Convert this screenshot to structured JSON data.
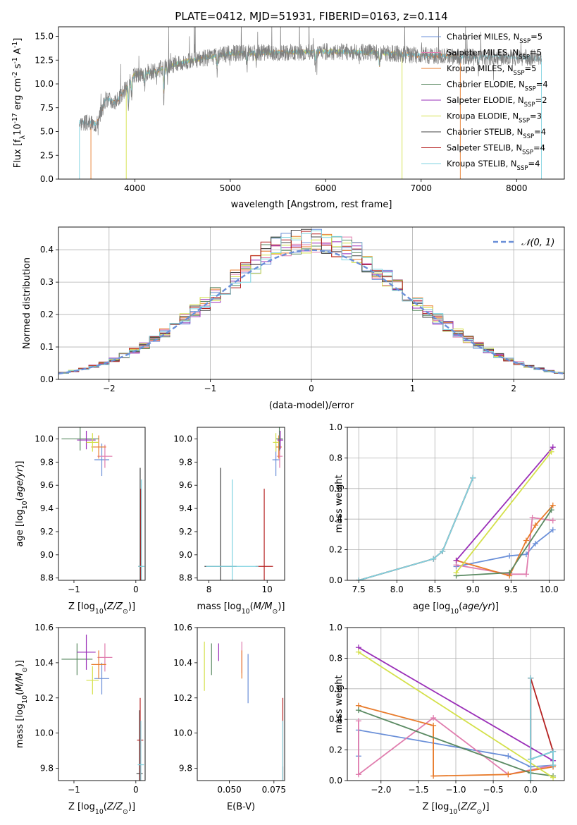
{
  "colors": {
    "chabrier_miles": "#6a8fd8",
    "salpeter_miles": "#e07dae",
    "kroupa_miles": "#e87b2b",
    "chabrier_elodie": "#5a8a62",
    "salpeter_elodie": "#9a2fb8",
    "kroupa_elodie": "#d4e04a",
    "chabrier_stelib": "#444444",
    "salpeter_stelib": "#b52222",
    "kroupa_stelib": "#7fd3e0",
    "grid": "#b0b0b0"
  },
  "chart_data": [
    {
      "id": "spectrum",
      "type": "line",
      "title": "PLATE=0412, MJD=51931, FIBERID=0163, z=0.114",
      "xlabel": "wavelength [Angstrom, rest frame]",
      "ylabel": "Flux [f$_\\lambda$10$^{-17}$ erg cm$^{-2}$ s$^{-1}$ A$^{-1}$]",
      "xlim": [
        3200,
        8500
      ],
      "ylim": [
        0,
        16
      ],
      "xticks": [
        "4000",
        "5000",
        "6000",
        "7000",
        "8000"
      ],
      "yticks": [
        "0.0",
        "2.5",
        "5.0",
        "7.5",
        "10.0",
        "12.5",
        "15.0"
      ],
      "legend_position": "top-right",
      "legend": [
        {
          "label": "Chabrier MILES, N",
          "sub": "SSP",
          "suffix": "=5",
          "color_key": "chabrier_miles"
        },
        {
          "label": "Salpeter MILES, N",
          "sub": "SSP",
          "suffix": "=5",
          "color_key": "salpeter_miles"
        },
        {
          "label": "Kroupa MILES, N",
          "sub": "SSP",
          "suffix": "=5",
          "color_key": "kroupa_miles"
        },
        {
          "label": "Chabrier ELODIE, N",
          "sub": "SSP",
          "suffix": "=4",
          "color_key": "chabrier_elodie"
        },
        {
          "label": "Salpeter ELODIE, N",
          "sub": "SSP",
          "suffix": "=2",
          "color_key": "salpeter_elodie"
        },
        {
          "label": "Kroupa ELODIE, N",
          "sub": "SSP",
          "suffix": "=3",
          "color_key": "kroupa_elodie"
        },
        {
          "label": "Chabrier STELIB, N",
          "sub": "SSP",
          "suffix": "=4",
          "color_key": "chabrier_stelib"
        },
        {
          "label": "Salpeter STELIB, N",
          "sub": "SSP",
          "suffix": "=4",
          "color_key": "salpeter_stelib"
        },
        {
          "label": "Kroupa STELIB, N",
          "sub": "SSP",
          "suffix": "=4",
          "color_key": "kroupa_stelib"
        }
      ],
      "data_range": [
        3420,
        8260
      ],
      "continuum": [
        [
          3420,
          6.0
        ],
        [
          3600,
          5.8
        ],
        [
          3700,
          8.5
        ],
        [
          3800,
          8.0
        ],
        [
          3900,
          9.5
        ],
        [
          4000,
          11.0
        ],
        [
          4200,
          11.3
        ],
        [
          4400,
          12.0
        ],
        [
          4600,
          12.5
        ],
        [
          5000,
          13.2
        ],
        [
          5500,
          13.3
        ],
        [
          6000,
          13.4
        ],
        [
          6500,
          13.3
        ],
        [
          7000,
          13.0
        ],
        [
          7500,
          12.8
        ],
        [
          8000,
          12.8
        ],
        [
          8260,
          12.7
        ]
      ],
      "absorption_lines": [
        [
          3934,
          3.0
        ],
        [
          3968,
          2.5
        ],
        [
          4102,
          1.5
        ],
        [
          4227,
          1.0
        ],
        [
          4304,
          3.5
        ],
        [
          4340,
          1.2
        ],
        [
          4861,
          1.5
        ],
        [
          5175,
          1.5
        ],
        [
          5270,
          1.0
        ],
        [
          5890,
          1.5
        ],
        [
          6563,
          2.0
        ],
        [
          7600,
          1.2
        ]
      ],
      "model_coverage": [
        {
          "color_key": "kroupa_miles",
          "range": [
            3540,
            7410
          ]
        },
        {
          "color_key": "kroupa_elodie",
          "range": [
            3910,
            6800
          ]
        },
        {
          "color_key": "kroupa_stelib",
          "range": [
            3420,
            8260
          ]
        }
      ]
    },
    {
      "id": "residuals",
      "type": "line",
      "xlabel": "(data-model)/error",
      "ylabel": "Normed distribution",
      "xlim": [
        -2.5,
        2.5
      ],
      "ylim": [
        0,
        0.47
      ],
      "xticks": [
        "−2",
        "−1",
        "0",
        "1",
        "2"
      ],
      "yticks": [
        "0.0",
        "0.1",
        "0.2",
        "0.3",
        "0.4"
      ],
      "grid": true,
      "legend_position": "top-right",
      "legend": [
        {
          "label": "𝒩(0, 1)",
          "color_key": "chabrier_miles",
          "style": "dashed"
        }
      ],
      "bin_width": 0.1,
      "series": [
        {
          "color_key": "chabrier_miles",
          "seed": 1
        },
        {
          "color_key": "salpeter_miles",
          "seed": 2
        },
        {
          "color_key": "kroupa_miles",
          "seed": 3
        },
        {
          "color_key": "chabrier_elodie",
          "seed": 4
        },
        {
          "color_key": "salpeter_elodie",
          "seed": 5
        },
        {
          "color_key": "kroupa_elodie",
          "seed": 6
        },
        {
          "color_key": "chabrier_stelib",
          "seed": 7
        },
        {
          "color_key": "salpeter_stelib",
          "seed": 8
        },
        {
          "color_key": "kroupa_stelib",
          "seed": 9
        }
      ]
    },
    {
      "id": "age_vs_Z",
      "type": "scatter",
      "xlabel": "Z [log$_{10}$($Z/Z_\\odot$)]",
      "ylabel": "age  [log$_{10}$($age/yr$)]",
      "xlim": [
        -1.25,
        0.15
      ],
      "ylim": [
        8.78,
        10.1
      ],
      "xticks": [
        "−1",
        "0"
      ],
      "yticks": [
        "8.8",
        "9.0",
        "9.2",
        "9.4",
        "9.6",
        "9.8",
        "10.0"
      ],
      "points": [
        {
          "x": -0.55,
          "y": 9.82,
          "xerr": 0.12,
          "yerr": 0.14,
          "color_key": "chabrier_miles"
        },
        {
          "x": -0.5,
          "y": 9.85,
          "xerr": 0.12,
          "yerr": 0.1,
          "color_key": "salpeter_miles"
        },
        {
          "x": -0.6,
          "y": 9.93,
          "xerr": 0.12,
          "yerr": 0.1,
          "color_key": "kroupa_miles"
        },
        {
          "x": -0.9,
          "y": 10.0,
          "xerr": 0.3,
          "yerr": 0.1,
          "color_key": "chabrier_elodie"
        },
        {
          "x": -0.8,
          "y": 9.99,
          "xerr": 0.15,
          "yerr": 0.08,
          "color_key": "salpeter_elodie"
        },
        {
          "x": -0.7,
          "y": 9.97,
          "xerr": 0.1,
          "yerr": 0.08,
          "color_key": "kroupa_elodie"
        },
        {
          "x": 0.07,
          "y": 8.9,
          "xerr": 0.03,
          "yerr": 0.85,
          "color_key": "chabrier_stelib"
        },
        {
          "x": 0.08,
          "y": 8.9,
          "xerr": 0.03,
          "yerr": 0.67,
          "color_key": "salpeter_stelib"
        },
        {
          "x": 0.09,
          "y": 8.9,
          "xerr": 0.05,
          "yerr": 0.75,
          "color_key": "kroupa_stelib"
        }
      ]
    },
    {
      "id": "age_vs_mass",
      "type": "scatter",
      "xlabel": "mass [log$_{10}$($M/M_\\odot$)]",
      "ylabel": "",
      "xlim": [
        7.6,
        10.6
      ],
      "ylim": [
        8.78,
        10.1
      ],
      "xticks": [
        "8",
        "10"
      ],
      "yticks": [
        "8.8",
        "9.0",
        "9.2",
        "9.4",
        "9.6",
        "9.8",
        "10.0"
      ],
      "points": [
        {
          "x": 10.3,
          "y": 9.82,
          "xerr": 0.12,
          "yerr": 0.14,
          "color_key": "chabrier_miles"
        },
        {
          "x": 10.43,
          "y": 9.85,
          "xerr": 0.1,
          "yerr": 0.1,
          "color_key": "salpeter_miles"
        },
        {
          "x": 10.4,
          "y": 9.93,
          "xerr": 0.1,
          "yerr": 0.1,
          "color_key": "kroupa_miles"
        },
        {
          "x": 10.42,
          "y": 10.0,
          "xerr": 0.12,
          "yerr": 0.1,
          "color_key": "chabrier_elodie"
        },
        {
          "x": 10.45,
          "y": 9.99,
          "xerr": 0.1,
          "yerr": 0.08,
          "color_key": "salpeter_elodie"
        },
        {
          "x": 10.3,
          "y": 9.97,
          "xerr": 0.1,
          "yerr": 0.08,
          "color_key": "kroupa_elodie"
        },
        {
          "x": 8.4,
          "y": 8.9,
          "xerr": 0.55,
          "yerr": 0.85,
          "color_key": "chabrier_stelib"
        },
        {
          "x": 9.9,
          "y": 8.9,
          "xerr": 0.3,
          "yerr": 0.67,
          "color_key": "salpeter_stelib"
        },
        {
          "x": 8.8,
          "y": 8.9,
          "xerr": 0.9,
          "yerr": 0.75,
          "color_key": "kroupa_stelib"
        }
      ]
    },
    {
      "id": "weight_vs_age",
      "type": "line",
      "xlabel": "age  [log$_{10}$($age/yr$)]",
      "ylabel": "mass weight",
      "xlim": [
        7.35,
        10.2
      ],
      "ylim": [
        0,
        1.0
      ],
      "xticks": [
        "7.5",
        "8.0",
        "8.5",
        "9.0",
        "9.5",
        "10.0"
      ],
      "yticks": [
        "0.0",
        "0.2",
        "0.4",
        "0.6",
        "0.8",
        "1.0"
      ],
      "grid": true,
      "series": [
        {
          "color_key": "chabrier_miles",
          "x": [
            8.78,
            9.48,
            9.7,
            9.82,
            10.05
          ],
          "y": [
            0.09,
            0.16,
            0.17,
            0.24,
            0.33
          ]
        },
        {
          "color_key": "salpeter_miles",
          "x": [
            8.78,
            9.48,
            9.7,
            9.78,
            10.05
          ],
          "y": [
            0.1,
            0.04,
            0.04,
            0.41,
            0.39
          ]
        },
        {
          "color_key": "kroupa_miles",
          "x": [
            8.78,
            9.48,
            9.7,
            9.82,
            10.05
          ],
          "y": [
            0.13,
            0.03,
            0.26,
            0.36,
            0.49
          ]
        },
        {
          "color_key": "chabrier_elodie",
          "x": [
            8.78,
            9.48,
            10.03
          ],
          "y": [
            0.03,
            0.05,
            0.46
          ]
        },
        {
          "color_key": "salpeter_elodie",
          "x": [
            8.78,
            10.05
          ],
          "y": [
            0.13,
            0.87
          ]
        },
        {
          "color_key": "kroupa_elodie",
          "x": [
            8.78,
            10.03
          ],
          "y": [
            0.05,
            0.84
          ]
        },
        {
          "color_key": "chabrier_stelib",
          "x": [
            7.5,
            8.48,
            8.6,
            9.0
          ],
          "y": [
            0.0,
            0.14,
            0.19,
            0.67
          ]
        },
        {
          "color_key": "salpeter_stelib",
          "x": [
            7.5,
            8.48,
            8.6,
            9.0
          ],
          "y": [
            0.0,
            0.14,
            0.19,
            0.67
          ]
        },
        {
          "color_key": "kroupa_stelib",
          "x": [
            7.5,
            8.48,
            8.6,
            9.0
          ],
          "y": [
            0.0,
            0.14,
            0.19,
            0.67
          ]
        }
      ]
    },
    {
      "id": "mass_vs_Z",
      "type": "scatter",
      "xlabel": "Z [log$_{10}$($Z/Z_\\odot$)]",
      "ylabel": "mass [log$_{10}$($M/M_\\odot$)]",
      "xlim": [
        -1.25,
        0.15
      ],
      "ylim": [
        9.73,
        10.6
      ],
      "xticks": [
        "−1",
        "0"
      ],
      "yticks": [
        "9.8",
        "10.0",
        "10.2",
        "10.4",
        "10.6"
      ],
      "points": [
        {
          "x": -0.55,
          "y": 10.31,
          "xerr": 0.12,
          "yerr": 0.09,
          "color_key": "chabrier_miles"
        },
        {
          "x": -0.5,
          "y": 10.43,
          "xerr": 0.12,
          "yerr": 0.08,
          "color_key": "salpeter_miles"
        },
        {
          "x": -0.6,
          "y": 10.39,
          "xerr": 0.12,
          "yerr": 0.08,
          "color_key": "kroupa_miles"
        },
        {
          "x": -0.95,
          "y": 10.42,
          "xerr": 0.25,
          "yerr": 0.09,
          "color_key": "chabrier_elodie"
        },
        {
          "x": -0.8,
          "y": 10.46,
          "xerr": 0.15,
          "yerr": 0.1,
          "color_key": "salpeter_elodie"
        },
        {
          "x": -0.7,
          "y": 10.3,
          "xerr": 0.1,
          "yerr": 0.08,
          "color_key": "kroupa_elodie"
        },
        {
          "x": 0.06,
          "y": 9.77,
          "xerr": 0.05,
          "yerr": 0.36,
          "color_key": "chabrier_stelib"
        },
        {
          "x": 0.07,
          "y": 9.96,
          "xerr": 0.05,
          "yerr": 0.24,
          "color_key": "salpeter_stelib"
        },
        {
          "x": 0.08,
          "y": 9.82,
          "xerr": 0.05,
          "yerr": 0.25,
          "color_key": "kroupa_stelib"
        }
      ]
    },
    {
      "id": "mass_vs_ebv",
      "type": "scatter",
      "xlabel": "E(B-V)",
      "ylabel": "",
      "xlim": [
        0.032,
        0.081
      ],
      "ylim": [
        9.73,
        10.6
      ],
      "xticks": [
        "0.050",
        "0.075"
      ],
      "yticks": [
        "9.8",
        "10.0",
        "10.2",
        "10.4",
        "10.6"
      ],
      "points": [
        {
          "x": 0.0605,
          "y": 10.31,
          "xerr": 0,
          "yerr": 0.14,
          "color_key": "chabrier_miles"
        },
        {
          "x": 0.057,
          "y": 10.43,
          "xerr": 0,
          "yerr": 0.09,
          "color_key": "salpeter_miles"
        },
        {
          "x": 0.057,
          "y": 10.39,
          "xerr": 0,
          "yerr": 0.08,
          "color_key": "kroupa_miles"
        },
        {
          "x": 0.04,
          "y": 10.42,
          "xerr": 0,
          "yerr": 0.09,
          "color_key": "chabrier_elodie"
        },
        {
          "x": 0.044,
          "y": 10.46,
          "xerr": 0,
          "yerr": 0.05,
          "color_key": "salpeter_elodie"
        },
        {
          "x": 0.036,
          "y": 10.38,
          "xerr": 0,
          "yerr": 0.14,
          "color_key": "kroupa_elodie"
        },
        {
          "x": 0.08,
          "y": 9.77,
          "xerr": 0,
          "yerr": 0.04,
          "color_key": "chabrier_stelib"
        },
        {
          "x": 0.08,
          "y": 9.96,
          "xerr": 0,
          "yerr": 0.24,
          "color_key": "salpeter_stelib"
        },
        {
          "x": 0.08,
          "y": 9.82,
          "xerr": 0,
          "yerr": 0.25,
          "color_key": "kroupa_stelib"
        }
      ]
    },
    {
      "id": "weight_vs_Z",
      "type": "line",
      "xlabel": "Z [log$_{10}$($Z/Z_\\odot$)]",
      "ylabel": "mass weight",
      "xlim": [
        -2.45,
        0.45
      ],
      "ylim": [
        0,
        1.0
      ],
      "xticks": [
        "−2.0",
        "−1.5",
        "−1.0",
        "−0.5",
        "0.0"
      ],
      "yticks": [
        "0.0",
        "0.2",
        "0.4",
        "0.6",
        "0.8",
        "1.0"
      ],
      "grid": true,
      "series": [
        {
          "color_key": "chabrier_miles",
          "x": [
            -2.3,
            -2.3,
            -0.3,
            0.0,
            0.3
          ],
          "y": [
            0.16,
            0.33,
            0.16,
            0.09,
            0.1
          ]
        },
        {
          "color_key": "salpeter_miles",
          "x": [
            -2.3,
            -2.3,
            -1.3,
            -0.3,
            0.3
          ],
          "y": [
            0.39,
            0.04,
            0.41,
            0.04,
            0.1
          ]
        },
        {
          "color_key": "kroupa_miles",
          "x": [
            -2.3,
            -1.3,
            -1.3,
            -0.3,
            0.3
          ],
          "y": [
            0.49,
            0.36,
            0.03,
            0.04,
            0.09
          ]
        },
        {
          "color_key": "chabrier_elodie",
          "x": [
            -2.3,
            0.0,
            0.3
          ],
          "y": [
            0.46,
            0.05,
            0.03
          ]
        },
        {
          "color_key": "salpeter_elodie",
          "x": [
            -2.3,
            0.3
          ],
          "y": [
            0.87,
            0.13
          ]
        },
        {
          "color_key": "kroupa_elodie",
          "x": [
            -2.3,
            0.3
          ],
          "y": [
            0.84,
            0.02
          ]
        },
        {
          "color_key": "chabrier_stelib",
          "x": [
            0.0,
            0.0,
            0.0,
            0.3,
            0.3
          ],
          "y": [
            0.0,
            0.67,
            0.14,
            0.19,
            0.1
          ]
        },
        {
          "color_key": "salpeter_stelib",
          "x": [
            0.0,
            0.0,
            0.3,
            0.3
          ],
          "y": [
            0.14,
            0.67,
            0.19,
            0.1
          ]
        },
        {
          "color_key": "kroupa_stelib",
          "x": [
            0.0,
            0.0,
            0.0,
            0.3,
            0.3
          ],
          "y": [
            0.0,
            0.67,
            0.14,
            0.19,
            0.1
          ]
        }
      ]
    }
  ]
}
